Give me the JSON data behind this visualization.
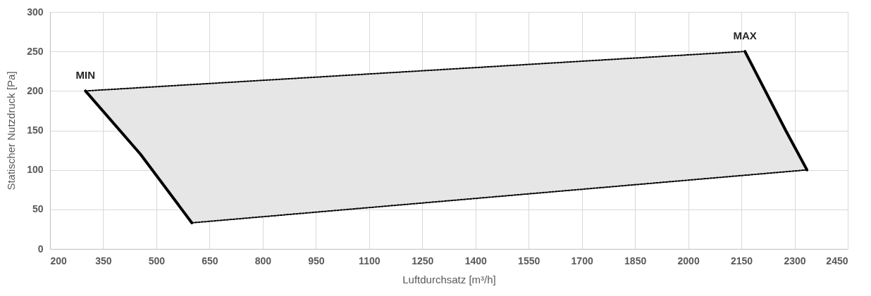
{
  "chart_data": {
    "type": "line",
    "xlabel": "Luftdurchsatz [m³/h]",
    "ylabel": "Statischer Nutzdruck [Pa]",
    "xlim": [
      200,
      2450
    ],
    "xticks": [
      200,
      350,
      500,
      650,
      800,
      950,
      1100,
      1250,
      1400,
      1550,
      1700,
      1850,
      2000,
      2150,
      2300,
      2450
    ],
    "ylim": [
      0,
      300
    ],
    "yticks": [
      0,
      50,
      100,
      150,
      200,
      250,
      300
    ],
    "grid": true,
    "series": [
      {
        "color": "#e6e6e6",
        "x": [
          300,
          455,
          600,
          2160,
          2275,
          2335
        ],
        "values": [
          null,
          null,
          null,
          null,
          null,
          null
        ],
        "lower": [
          200,
          120,
          33,
          93,
          98,
          100
        ],
        "upper": [
          200,
          204,
          208,
          250,
          150,
          100
        ]
      },
      {
        "color": "#000000",
        "line_style": "dotted",
        "x": [
          300,
          2160
        ],
        "values": [
          200,
          250
        ]
      },
      {
        "color": "#000000",
        "line_style": "dotted",
        "x": [
          600,
          2335
        ],
        "values": [
          33,
          100
        ]
      },
      {
        "name": "MIN",
        "color": "#000000",
        "line_style": "solid",
        "x": [
          300,
          455,
          600
        ],
        "values": [
          200,
          120,
          33
        ]
      },
      {
        "name": "MAX",
        "color": "#000000",
        "line_style": "solid",
        "x": [
          2160,
          2275,
          2335
        ],
        "values": [
          250,
          150,
          100
        ]
      }
    ]
  }
}
